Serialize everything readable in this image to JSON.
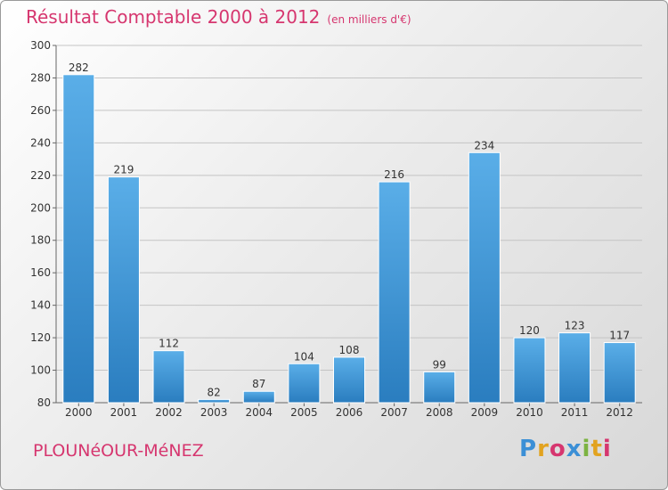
{
  "header": {
    "title": "Résultat Comptable 2000 à 2012",
    "subtitle": "(en milliers d'€)"
  },
  "footer": {
    "commune": "PLOUNéOUR-MéNEZ",
    "logo_letters": [
      "P",
      "r",
      "o",
      "x",
      "i",
      "t",
      "i"
    ],
    "logo_colors": [
      "#3b8fd6",
      "#e2a320",
      "#d6366f",
      "#3b8fd6",
      "#7cb342",
      "#e2a320",
      "#d6366f"
    ]
  },
  "chart_data": {
    "type": "bar",
    "title": "Résultat Comptable 2000 à 2012",
    "subtitle": "(en milliers d'€)",
    "categories": [
      "2000",
      "2001",
      "2002",
      "2003",
      "2004",
      "2005",
      "2006",
      "2007",
      "2008",
      "2009",
      "2010",
      "2011",
      "2012"
    ],
    "values": [
      282,
      219,
      112,
      82,
      87,
      104,
      108,
      216,
      99,
      234,
      120,
      123,
      117
    ],
    "ylim": [
      80,
      300
    ],
    "yticks": [
      80,
      100,
      120,
      140,
      160,
      180,
      200,
      220,
      240,
      260,
      280,
      300
    ],
    "grid": true,
    "bar_color_top": "#5aaee8",
    "bar_color_bottom": "#2a7dbf"
  }
}
